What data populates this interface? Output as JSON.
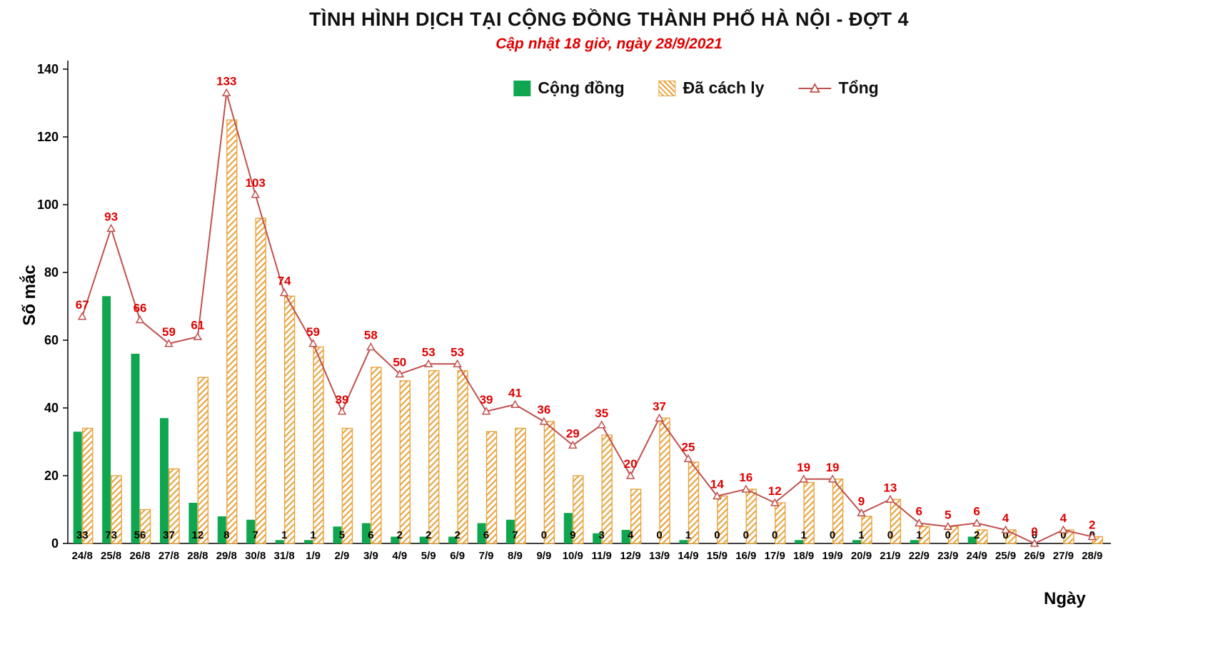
{
  "header": {
    "title": "TÌNH HÌNH DỊCH TẠI CỘNG ĐỒNG THÀNH PHỐ HÀ NỘI - ĐỢT 4",
    "subtitle": "Cập nhật 18 giờ, ngày 28/9/2021"
  },
  "colors": {
    "community_green": "#0fa64f",
    "quarantine_orange": "#e8a33d",
    "total_line": "#c0504d",
    "label_red": "#e00000"
  },
  "chart_data": {
    "type": "bar+line",
    "xlabel": "Ngày",
    "ylabel": "Số mắc",
    "ylim": [
      0,
      140
    ],
    "yticks": [
      0,
      20,
      40,
      60,
      80,
      100,
      120,
      140
    ],
    "legend_position": "top",
    "grid": false,
    "categories": [
      "24/8",
      "25/8",
      "26/8",
      "27/8",
      "28/8",
      "29/8",
      "30/8",
      "31/8",
      "1/9",
      "2/9",
      "3/9",
      "4/9",
      "5/9",
      "6/9",
      "7/9",
      "8/9",
      "9/9",
      "10/9",
      "11/9",
      "12/9",
      "13/9",
      "14/9",
      "15/9",
      "16/9",
      "17/9",
      "18/9",
      "19/9",
      "20/9",
      "21/9",
      "22/9",
      "23/9",
      "24/9",
      "25/9",
      "26/9",
      "27/9",
      "28/9"
    ],
    "series": [
      {
        "name": "Cộng đồng",
        "type": "bar",
        "style": "solid",
        "color": "#0fa64f",
        "values": [
          33,
          73,
          56,
          37,
          12,
          8,
          7,
          1,
          1,
          5,
          6,
          2,
          2,
          2,
          6,
          7,
          0,
          9,
          3,
          4,
          0,
          1,
          0,
          0,
          0,
          1,
          0,
          1,
          0,
          1,
          0,
          2,
          0,
          0,
          0,
          0
        ]
      },
      {
        "name": "Đã cách ly",
        "type": "bar",
        "style": "hatched",
        "color": "#e8a33d",
        "values": [
          34,
          20,
          10,
          22,
          49,
          125,
          96,
          73,
          58,
          34,
          52,
          48,
          51,
          51,
          33,
          34,
          36,
          20,
          32,
          16,
          37,
          24,
          14,
          16,
          12,
          18,
          19,
          8,
          13,
          5,
          5,
          4,
          4,
          0,
          4,
          2
        ]
      },
      {
        "name": "Tổng",
        "type": "line",
        "marker": "triangle-open",
        "color": "#c0504d",
        "label_color": "#e00000",
        "values": [
          67,
          93,
          66,
          59,
          61,
          133,
          103,
          74,
          59,
          39,
          58,
          50,
          53,
          53,
          39,
          41,
          36,
          29,
          35,
          20,
          37,
          25,
          14,
          16,
          12,
          19,
          19,
          9,
          13,
          6,
          5,
          6,
          4,
          0,
          4,
          2
        ]
      }
    ]
  }
}
